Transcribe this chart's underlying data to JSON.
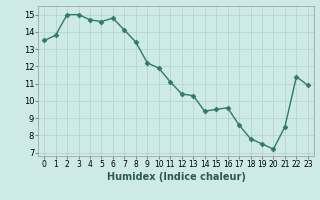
{
  "x": [
    0,
    1,
    2,
    3,
    4,
    5,
    6,
    7,
    8,
    9,
    10,
    11,
    12,
    13,
    14,
    15,
    16,
    17,
    18,
    19,
    20,
    21,
    22,
    23
  ],
  "y": [
    13.5,
    13.8,
    15.0,
    15.0,
    14.7,
    14.6,
    14.8,
    14.1,
    13.4,
    12.2,
    11.9,
    11.1,
    10.4,
    10.3,
    9.4,
    9.5,
    9.6,
    8.6,
    7.8,
    7.5,
    7.2,
    8.5,
    11.4,
    10.9
  ],
  "xlabel": "Humidex (Indice chaleur)",
  "xlim": [
    -0.5,
    23.5
  ],
  "ylim": [
    6.8,
    15.5
  ],
  "yticks": [
    7,
    8,
    9,
    10,
    11,
    12,
    13,
    14,
    15
  ],
  "xticks": [
    0,
    1,
    2,
    3,
    4,
    5,
    6,
    7,
    8,
    9,
    10,
    11,
    12,
    13,
    14,
    15,
    16,
    17,
    18,
    19,
    20,
    21,
    22,
    23
  ],
  "line_color": "#2d7a6e",
  "marker": "D",
  "marker_size": 2.5,
  "bg_color": "#ceeae6",
  "grid_color_major": "#b8d4d0",
  "grid_color_minor": "#daf0ec",
  "fig_bg": "#ceeae6",
  "xlabel_fontsize": 7,
  "tick_fontsize": 6,
  "linewidth": 1.0
}
